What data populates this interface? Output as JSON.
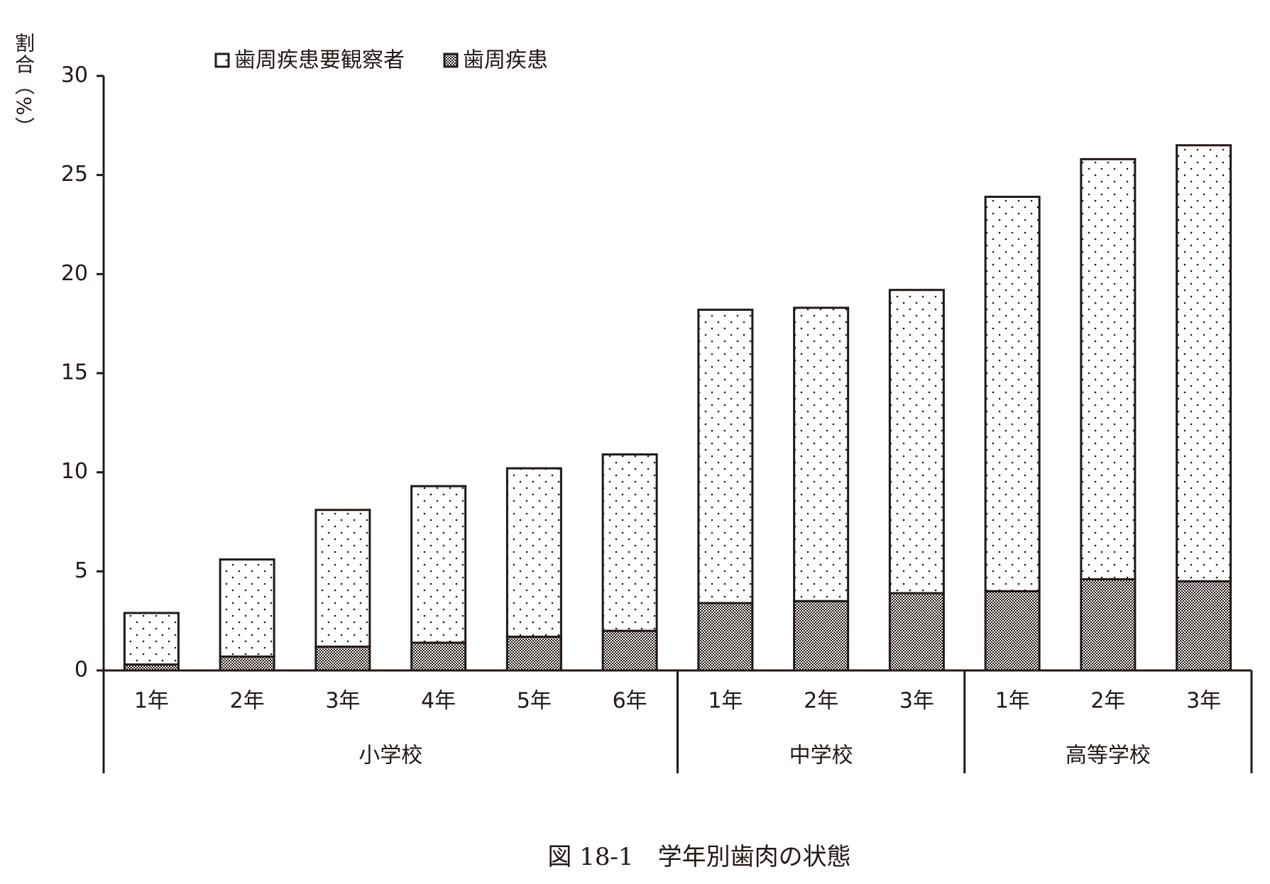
{
  "chart_data": {
    "type": "stacked-bar",
    "caption": "図 18-1　学年別歯肉の状態",
    "y_label": "割合（%）",
    "groups": [
      {
        "name": "小学校",
        "categories": [
          "1年",
          "2年",
          "3年",
          "4年",
          "5年",
          "6年"
        ]
      },
      {
        "name": "中学校",
        "categories": [
          "1年",
          "2年",
          "3年"
        ]
      },
      {
        "name": "高等学校",
        "categories": [
          "1年",
          "2年",
          "3年"
        ]
      }
    ],
    "series": [
      {
        "name": "歯周疾患要観察者",
        "color": "#ffffff",
        "values": [
          2.6,
          4.9,
          6.9,
          7.9,
          8.5,
          8.9,
          14.8,
          14.8,
          15.3,
          19.9,
          21.2,
          22.0
        ]
      },
      {
        "name": "歯周疾患",
        "color": "#9a9a9a",
        "values": [
          0.3,
          0.7,
          1.2,
          1.4,
          1.7,
          2.0,
          3.4,
          3.5,
          3.9,
          4.0,
          4.6,
          4.5
        ]
      }
    ],
    "ylim": [
      0,
      30
    ],
    "yticks": [
      0,
      5,
      10,
      15,
      20,
      25,
      30
    ],
    "grid": false
  }
}
